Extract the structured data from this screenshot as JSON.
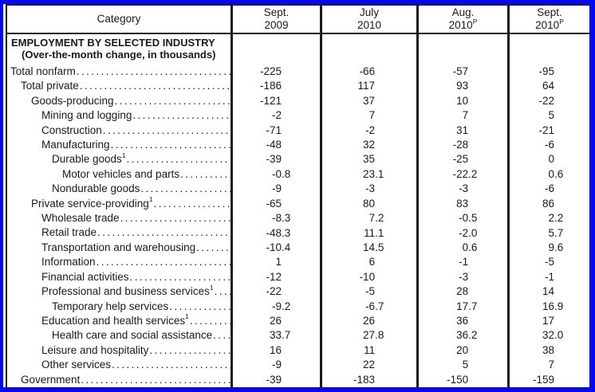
{
  "header": {
    "category_label": "Category",
    "date_columns": [
      {
        "month": "Sept.",
        "year": "2009",
        "sup": ""
      },
      {
        "month": "July",
        "year": "2010",
        "sup": ""
      },
      {
        "month": "Aug.",
        "year": "2010",
        "sup": "P"
      },
      {
        "month": "Sept.",
        "year": "2010",
        "sup": "P"
      }
    ]
  },
  "section": {
    "title": "EMPLOYMENT BY SELECTED INDUSTRY",
    "subtitle": "(Over-the-month change, in thousands)"
  },
  "rows": [
    {
      "label": "Total nonfarm",
      "footnote": "",
      "indent": 0,
      "values": [
        "-225",
        "-66",
        "-57",
        "-95"
      ]
    },
    {
      "label": "Total private",
      "footnote": "",
      "indent": 1,
      "values": [
        "-186",
        "117",
        "93",
        "64"
      ]
    },
    {
      "label": "Goods-producing",
      "footnote": "",
      "indent": 2,
      "values": [
        "-121",
        "37",
        "10",
        "-22"
      ]
    },
    {
      "label": "Mining and logging",
      "footnote": "",
      "indent": 3,
      "values": [
        "-2",
        "7",
        "7",
        "5"
      ]
    },
    {
      "label": "Construction",
      "footnote": "",
      "indent": 3,
      "values": [
        "-71",
        "-2",
        "31",
        "-21"
      ]
    },
    {
      "label": "Manufacturing",
      "footnote": "",
      "indent": 3,
      "values": [
        "-48",
        "32",
        "-28",
        "-6"
      ]
    },
    {
      "label": "Durable goods",
      "footnote": "1",
      "indent": 4,
      "values": [
        "-39",
        "35",
        "-25",
        "0"
      ]
    },
    {
      "label": "Motor vehicles and parts",
      "footnote": "",
      "indent": 5,
      "values": [
        "-0.8",
        "23.1",
        "-22.2",
        "0.6"
      ]
    },
    {
      "label": "Nondurable goods",
      "footnote": "",
      "indent": 4,
      "values": [
        "-9",
        "-3",
        "-3",
        "-6"
      ]
    },
    {
      "label": "Private service-providing",
      "footnote": "1",
      "indent": 2,
      "values": [
        "-65",
        "80",
        "83",
        "86"
      ]
    },
    {
      "label": "Wholesale trade",
      "footnote": "",
      "indent": 3,
      "values": [
        "-8.3",
        "7.2",
        "-0.5",
        "2.2"
      ]
    },
    {
      "label": "Retail trade",
      "footnote": "",
      "indent": 3,
      "values": [
        "-48.3",
        "11.1",
        "-2.0",
        "5.7"
      ]
    },
    {
      "label": "Transportation and warehousing",
      "footnote": "",
      "indent": 3,
      "values": [
        "-10.4",
        "14.5",
        "0.6",
        "9.6"
      ]
    },
    {
      "label": "Information",
      "footnote": "",
      "indent": 3,
      "values": [
        "1",
        "6",
        "-1",
        "-5"
      ]
    },
    {
      "label": "Financial activities",
      "footnote": "",
      "indent": 3,
      "values": [
        "-12",
        "-10",
        "-3",
        "-1"
      ]
    },
    {
      "label": "Professional and business services",
      "footnote": "1",
      "indent": 3,
      "values": [
        "-22",
        "-5",
        "28",
        "14"
      ]
    },
    {
      "label": "Temporary help services",
      "footnote": "",
      "indent": 4,
      "values": [
        "-9.2",
        "-6.7",
        "17.7",
        "16.9"
      ]
    },
    {
      "label": "Education and health services",
      "footnote": "1",
      "indent": 3,
      "values": [
        "26",
        "26",
        "36",
        "17"
      ]
    },
    {
      "label": "Health care and social assistance",
      "footnote": "",
      "indent": 4,
      "values": [
        "33.7",
        "27.8",
        "36.2",
        "32.0"
      ]
    },
    {
      "label": "Leisure and hospitality",
      "footnote": "",
      "indent": 3,
      "values": [
        "16",
        "11",
        "20",
        "38"
      ]
    },
    {
      "label": "Other services",
      "footnote": "",
      "indent": 3,
      "values": [
        "-9",
        "22",
        "5",
        "7"
      ]
    },
    {
      "label": "Government",
      "footnote": "",
      "indent": 1,
      "values": [
        "-39",
        "-183",
        "-150",
        "-159"
      ]
    }
  ],
  "colors": {
    "frame_blue": "#0208f2",
    "table_line": "#1a1a1a",
    "text": "#1a1a1a"
  }
}
